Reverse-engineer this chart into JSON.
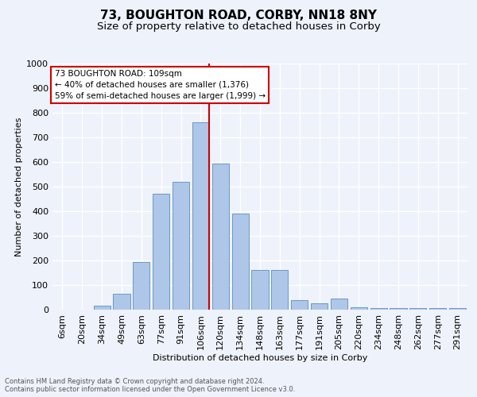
{
  "title1": "73, BOUGHTON ROAD, CORBY, NN18 8NY",
  "title2": "Size of property relative to detached houses in Corby",
  "xlabel": "Distribution of detached houses by size in Corby",
  "ylabel": "Number of detached properties",
  "footer1": "Contains HM Land Registry data © Crown copyright and database right 2024.",
  "footer2": "Contains public sector information licensed under the Open Government Licence v3.0.",
  "annotation_line1": "73 BOUGHTON ROAD: 109sqm",
  "annotation_line2": "← 40% of detached houses are smaller (1,376)",
  "annotation_line3": "59% of semi-detached houses are larger (1,999) →",
  "bar_labels": [
    "6sqm",
    "20sqm",
    "34sqm",
    "49sqm",
    "63sqm",
    "77sqm",
    "91sqm",
    "106sqm",
    "120sqm",
    "134sqm",
    "148sqm",
    "163sqm",
    "177sqm",
    "191sqm",
    "205sqm",
    "220sqm",
    "234sqm",
    "248sqm",
    "262sqm",
    "277sqm",
    "291sqm"
  ],
  "bar_values": [
    0,
    0,
    15,
    65,
    195,
    470,
    520,
    760,
    595,
    390,
    160,
    160,
    40,
    25,
    45,
    10,
    5,
    5,
    5,
    5,
    5
  ],
  "bar_color": "#aec6e8",
  "bar_edge_color": "#5a8fc0",
  "vline_color": "#cc0000",
  "ylim": [
    0,
    1000
  ],
  "yticks": [
    0,
    100,
    200,
    300,
    400,
    500,
    600,
    700,
    800,
    900,
    1000
  ],
  "background_color": "#eef2fb",
  "grid_color": "#ffffff",
  "title1_fontsize": 11,
  "title2_fontsize": 9.5,
  "axis_fontsize": 8,
  "ylabel_fontsize": 8,
  "xlabel_fontsize": 8,
  "annotation_box_color": "#cc0000",
  "annotation_bg": "#ffffff",
  "footer_fontsize": 6,
  "footer_color": "#555555"
}
